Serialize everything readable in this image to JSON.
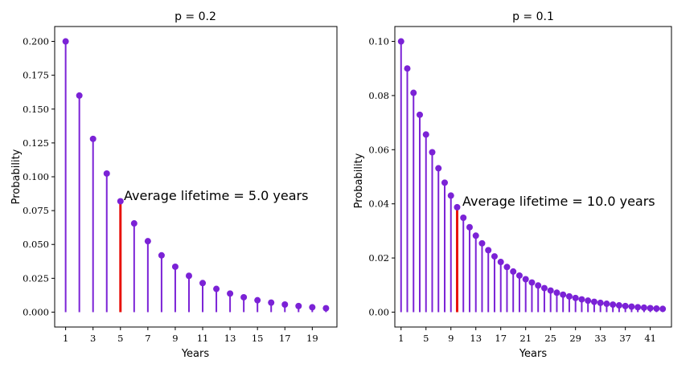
{
  "colors": {
    "stem": "#7b22d6",
    "highlight": "#e8120c",
    "marker": "#7b22d6"
  },
  "chart_data": [
    {
      "type": "stem",
      "title": "p = 0.2",
      "xlabel": "Years",
      "ylabel": "Probability",
      "annotation": "Average lifetime = 5.0 years",
      "highlight_x": 5,
      "x": [
        1,
        2,
        3,
        4,
        5,
        6,
        7,
        8,
        9,
        10,
        11,
        12,
        13,
        14,
        15,
        16,
        17,
        18,
        19,
        20
      ],
      "y": [
        0.2,
        0.16,
        0.128,
        0.1024,
        0.08192,
        0.065536,
        0.0524288,
        0.04194304,
        0.033554432,
        0.0268435456,
        0.02147483648,
        0.017179869184,
        0.0137438953472,
        0.01099511627776,
        0.008796093022208,
        0.0070368744177664,
        0.00562949953421312,
        0.004503599627370496,
        0.0036028797018963967,
        0.0028823037615171173
      ],
      "xlim": [
        0.2,
        20.8
      ],
      "ylim": [
        -0.011,
        0.211
      ],
      "xticks": [
        1,
        3,
        5,
        7,
        9,
        11,
        13,
        15,
        17,
        19
      ],
      "yticks": [
        "0.000",
        "0.025",
        "0.050",
        "0.075",
        "0.100",
        "0.125",
        "0.150",
        "0.175",
        "0.200"
      ]
    },
    {
      "type": "stem",
      "title": "p = 0.1",
      "xlabel": "Years",
      "ylabel": "Probability",
      "annotation": "Average lifetime = 10.0 years",
      "highlight_x": 10,
      "x": [
        1,
        2,
        3,
        4,
        5,
        6,
        7,
        8,
        9,
        10,
        11,
        12,
        13,
        14,
        15,
        16,
        17,
        18,
        19,
        20,
        21,
        22,
        23,
        24,
        25,
        26,
        27,
        28,
        29,
        30,
        31,
        32,
        33,
        34,
        35,
        36,
        37,
        38,
        39,
        40,
        41,
        42,
        43
      ],
      "y": [
        0.1,
        0.09,
        0.081,
        0.0729,
        0.06561,
        0.059049,
        0.0531441,
        0.04782969,
        0.043046721,
        0.0387420489,
        0.03486784401,
        0.031381059609,
        0.0282429536481,
        0.02541865828329,
        0.022876792454961,
        0.0205891132094649,
        0.01853020188851841,
        0.01667718169966657,
        0.015009463529699911,
        0.013508517176729922,
        0.01215766545905693,
        0.010941898913151235,
        0.009847709021836112,
        0.0088629381196525,
        0.00797664430768725,
        0.007178979876918526,
        0.006461081889226673,
        0.005814973700304006,
        0.005233476330273605,
        0.004710128697246244,
        0.00423911582752162,
        0.003815204244769458,
        0.003433683820292512,
        0.003090315438263261,
        0.002781283894436935,
        0.002503155505,
        0.0022528399544939175,
        0.0020275559590445255,
        0.0018248003631400733,
        0.0016423203268260658,
        0.0014780882941434594,
        0.0013302794647291134,
        0.001197251518256202
      ],
      "xlim": [
        0,
        44.4
      ],
      "ylim": [
        -0.0055,
        0.1055
      ],
      "xticks": [
        1,
        5,
        9,
        13,
        17,
        21,
        25,
        29,
        33,
        37,
        41
      ],
      "yticks": [
        "0.00",
        "0.02",
        "0.04",
        "0.06",
        "0.08",
        "0.10"
      ]
    }
  ]
}
